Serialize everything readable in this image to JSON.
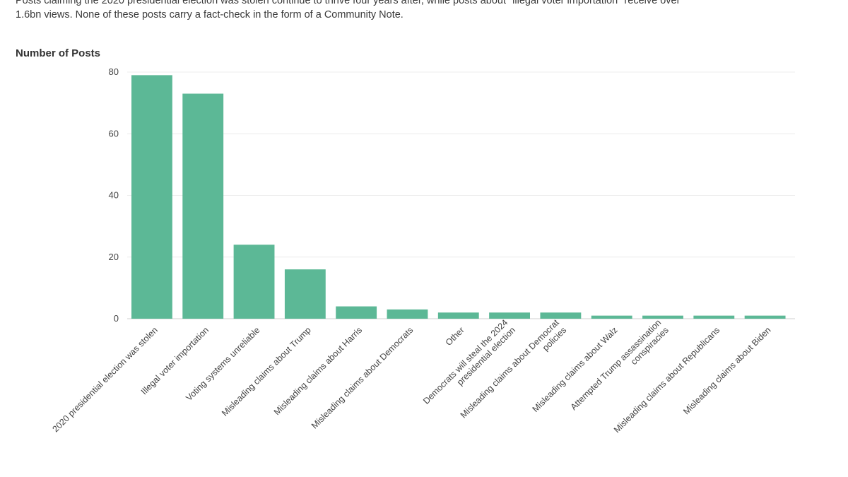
{
  "subtitle": {
    "line1": "Posts claiming the 2020 presidential election was stolen continue to thrive four years after, while posts about \"illegal voter importation\" receive over",
    "line2": "1.6bn views. None of these posts carry a fact-check in the form of a Community Note."
  },
  "colors": {
    "bar": "#5cb896",
    "grid": "#ececec",
    "axis": "#cfcfcf"
  },
  "chart_data": {
    "type": "bar",
    "ylabel": "Number of Posts",
    "ylim": [
      0,
      80
    ],
    "yticks": [
      0,
      20,
      40,
      60,
      80
    ],
    "grid": true,
    "categories": [
      "2020 presidential election was stolen",
      "Illegal voter importation",
      "Voting systems unreliable",
      "Misleading claims about Trump",
      "Misleading claims about Harris",
      "Misleading claims about Democrats",
      "Other",
      "Democrats will steal the 2024 presidential election",
      "Misleading claims about Democrat policies",
      "Misleading claims about Walz",
      "Attempted Trump assassination conspiracies",
      "Misleading claims about Republicans",
      "Misleading claims about Biden"
    ],
    "category_lines": [
      [
        "2020 presidential election was stolen"
      ],
      [
        "Illegal voter importation"
      ],
      [
        "Voting systems unreliable"
      ],
      [
        "Misleading claims about Trump"
      ],
      [
        "Misleading claims about Harris"
      ],
      [
        "Misleading claims about Democrats"
      ],
      [
        "Other"
      ],
      [
        "Democrats will steal the 2024",
        "presidential election"
      ],
      [
        "Misleading claims about Democrat",
        "policies"
      ],
      [
        "Misleading claims about Walz"
      ],
      [
        "Attempted Trump assassination",
        "conspiracies"
      ],
      [
        "Misleading claims about Republicans"
      ],
      [
        "Misleading claims about Biden"
      ]
    ],
    "values": [
      79,
      73,
      24,
      16,
      4,
      3,
      2,
      2,
      2,
      1,
      1,
      1,
      1
    ]
  }
}
